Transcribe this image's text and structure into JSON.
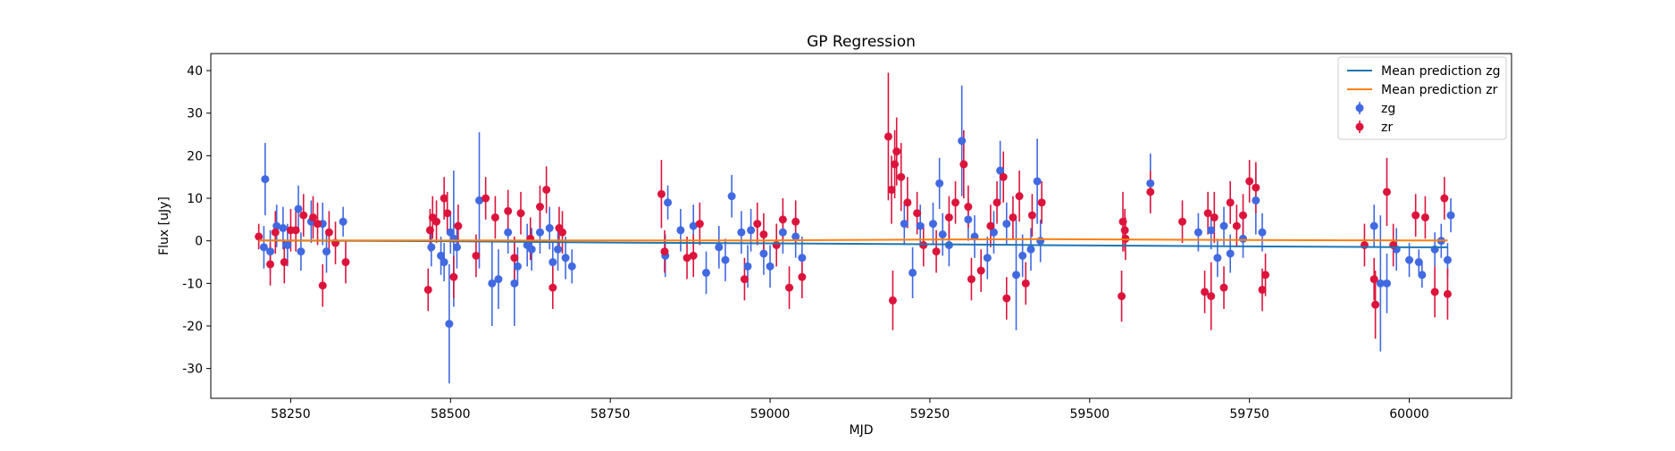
{
  "chart_data": {
    "type": "scatter",
    "title": "GP Regression",
    "xlabel": "MJD",
    "ylabel": "Flux [uJy]",
    "xlim": [
      58125,
      60160
    ],
    "ylim": [
      -37,
      44
    ],
    "xticks": [
      58250,
      58500,
      58750,
      59000,
      59250,
      59500,
      59750,
      60000
    ],
    "yticks": [
      -30,
      -20,
      -10,
      0,
      10,
      20,
      30,
      40
    ],
    "grid": false,
    "legend_position": "top-right",
    "colors": {
      "zg_points": "#4169e1",
      "zr_points": "#dc143c",
      "zg_mean": "#1f77b4",
      "zr_mean": "#ff7f0e"
    },
    "lines": [
      {
        "name": "Mean prediction zg",
        "color": "#1f77b4",
        "x": [
          58200,
          58500,
          58750,
          59000,
          59250,
          59420,
          59750,
          60000,
          60060
        ],
        "y": [
          0.1,
          -0.1,
          -0.4,
          -0.6,
          -0.8,
          -1.0,
          -1.3,
          -1.5,
          -1.5
        ]
      },
      {
        "name": "Mean prediction zr",
        "color": "#ff7f0e",
        "x": [
          58200,
          58500,
          58750,
          59000,
          59250,
          59420,
          59750,
          60000,
          60060
        ],
        "y": [
          0.1,
          0.1,
          0.1,
          0.1,
          0.3,
          0.4,
          0.2,
          0.1,
          0.1
        ]
      }
    ],
    "series": [
      {
        "name": "zg",
        "color": "#4169e1",
        "points": [
          [
            58208,
            -1.5,
            5
          ],
          [
            58210,
            14.5,
            8.5
          ],
          [
            58218,
            -2.5,
            5
          ],
          [
            58228,
            3.5,
            5
          ],
          [
            58238,
            3,
            5
          ],
          [
            58245,
            -1,
            5
          ],
          [
            58262,
            7.5,
            5.5
          ],
          [
            58266,
            -2.5,
            4.5
          ],
          [
            58282,
            4.5,
            5
          ],
          [
            58300,
            4,
            5
          ],
          [
            58306,
            -2.5,
            5
          ],
          [
            58332,
            4.5,
            3.5
          ],
          [
            58470,
            -1.5,
            4.5
          ],
          [
            58485,
            -3.5,
            4.5
          ],
          [
            58490,
            -5,
            4.5
          ],
          [
            58498,
            -19.5,
            14
          ],
          [
            58500,
            2,
            5
          ],
          [
            58505,
            0.5,
            16
          ],
          [
            58510,
            -1.5,
            5
          ],
          [
            58545,
            9.5,
            16
          ],
          [
            58565,
            -10,
            10
          ],
          [
            58575,
            -9,
            7
          ],
          [
            58590,
            2,
            5
          ],
          [
            58600,
            -10,
            10
          ],
          [
            58605,
            -6,
            4.5
          ],
          [
            58620,
            -1,
            5
          ],
          [
            58627,
            -2,
            5
          ],
          [
            58640,
            2,
            5
          ],
          [
            58655,
            3,
            5
          ],
          [
            58660,
            -5,
            5
          ],
          [
            58668,
            -2,
            5
          ],
          [
            58680,
            -4,
            5
          ],
          [
            58690,
            -6,
            4
          ],
          [
            58836,
            -3.5,
            5
          ],
          [
            58840,
            9,
            4
          ],
          [
            58860,
            2.5,
            5
          ],
          [
            58880,
            3.5,
            5
          ],
          [
            58900,
            -7.5,
            5
          ],
          [
            58920,
            -1.5,
            5
          ],
          [
            58930,
            -4.5,
            5
          ],
          [
            58940,
            10.5,
            5
          ],
          [
            58955,
            2,
            5
          ],
          [
            58965,
            -6,
            5
          ],
          [
            58970,
            2.5,
            5
          ],
          [
            58990,
            -3,
            5
          ],
          [
            59000,
            -6,
            5
          ],
          [
            59020,
            2,
            5
          ],
          [
            59040,
            1,
            5
          ],
          [
            59050,
            -4,
            5
          ],
          [
            59210,
            4,
            5
          ],
          [
            59223,
            -7.5,
            6
          ],
          [
            59235,
            3.5,
            5
          ],
          [
            59255,
            4,
            5
          ],
          [
            59265,
            13.5,
            6
          ],
          [
            59270,
            1.5,
            5
          ],
          [
            59280,
            -1,
            5
          ],
          [
            59300,
            23.5,
            13
          ],
          [
            59310,
            5,
            5
          ],
          [
            59320,
            1,
            5
          ],
          [
            59340,
            -4,
            5
          ],
          [
            59350,
            2,
            5
          ],
          [
            59360,
            16.5,
            7
          ],
          [
            59370,
            4,
            5
          ],
          [
            59385,
            -8,
            13
          ],
          [
            59395,
            -3.5,
            5
          ],
          [
            59408,
            -2,
            5
          ],
          [
            59418,
            14,
            10
          ],
          [
            59423,
            0,
            5
          ],
          [
            59595,
            13.5,
            7
          ],
          [
            59670,
            2,
            4.5
          ],
          [
            59690,
            2.5,
            4.5
          ],
          [
            59700,
            -4,
            4.5
          ],
          [
            59710,
            3.5,
            4.5
          ],
          [
            59720,
            -3,
            4.5
          ],
          [
            59740,
            0.5,
            4.5
          ],
          [
            59760,
            9.5,
            8
          ],
          [
            59770,
            2,
            4.5
          ],
          [
            59945,
            3.5,
            5
          ],
          [
            59955,
            -10,
            16
          ],
          [
            59965,
            -10,
            7
          ],
          [
            59980,
            -2,
            5
          ],
          [
            60000,
            -4.5,
            4
          ],
          [
            60015,
            -5,
            3
          ],
          [
            60020,
            -8,
            3
          ],
          [
            60040,
            -2,
            4
          ],
          [
            60050,
            0,
            4
          ],
          [
            60060,
            -4.5,
            4
          ],
          [
            60065,
            6,
            4
          ]
        ]
      },
      {
        "name": "zr",
        "color": "#dc143c",
        "points": [
          [
            58200,
            1,
            3
          ],
          [
            58218,
            -5.5,
            5
          ],
          [
            58226,
            2,
            5
          ],
          [
            58240,
            -5,
            5
          ],
          [
            58250,
            2.5,
            5
          ],
          [
            58258,
            2.5,
            5
          ],
          [
            58270,
            6,
            5
          ],
          [
            58285,
            5.5,
            5
          ],
          [
            58292,
            4,
            5
          ],
          [
            58300,
            -10.5,
            5
          ],
          [
            58310,
            2,
            5
          ],
          [
            58320,
            -0.5,
            5
          ],
          [
            58336,
            -5,
            5
          ],
          [
            58465,
            -11.5,
            5
          ],
          [
            58468,
            2.5,
            5
          ],
          [
            58472,
            5.5,
            5
          ],
          [
            58478,
            4.5,
            5
          ],
          [
            58490,
            10,
            5
          ],
          [
            58495,
            6.5,
            5
          ],
          [
            58505,
            -8.5,
            5
          ],
          [
            58512,
            3.5,
            5
          ],
          [
            58540,
            -3.5,
            5
          ],
          [
            58555,
            10,
            5
          ],
          [
            58570,
            5.5,
            5
          ],
          [
            58590,
            7,
            5
          ],
          [
            58600,
            -4,
            5
          ],
          [
            58610,
            6.5,
            5
          ],
          [
            58625,
            0.5,
            5
          ],
          [
            58640,
            8,
            5
          ],
          [
            58650,
            12,
            5.5
          ],
          [
            58660,
            -11,
            5
          ],
          [
            58670,
            3,
            5
          ],
          [
            58675,
            2,
            5
          ],
          [
            58830,
            11,
            8
          ],
          [
            58835,
            -2.5,
            5
          ],
          [
            58870,
            -4,
            5
          ],
          [
            58880,
            -3.5,
            5
          ],
          [
            58890,
            4,
            5
          ],
          [
            58960,
            -9,
            5
          ],
          [
            58980,
            4,
            5
          ],
          [
            58990,
            1.5,
            5
          ],
          [
            59010,
            -1,
            5
          ],
          [
            59020,
            5,
            5
          ],
          [
            59030,
            -11,
            5
          ],
          [
            59040,
            4.5,
            5
          ],
          [
            59050,
            -8.5,
            5
          ],
          [
            59185,
            24.5,
            15
          ],
          [
            59190,
            12,
            8
          ],
          [
            59192,
            -14,
            7
          ],
          [
            59195,
            18,
            8
          ],
          [
            59198,
            21,
            8
          ],
          [
            59205,
            15,
            8
          ],
          [
            59215,
            9,
            6
          ],
          [
            59230,
            6.5,
            5
          ],
          [
            59240,
            -1,
            5
          ],
          [
            59260,
            -2.5,
            5
          ],
          [
            59280,
            5.5,
            5
          ],
          [
            59290,
            9,
            5
          ],
          [
            59303,
            18,
            8
          ],
          [
            59310,
            8,
            5
          ],
          [
            59315,
            -9,
            5
          ],
          [
            59330,
            -7,
            5
          ],
          [
            59345,
            3.5,
            5
          ],
          [
            59355,
            9,
            5
          ],
          [
            59365,
            15,
            6
          ],
          [
            59370,
            -13.5,
            5
          ],
          [
            59380,
            5.5,
            5
          ],
          [
            59390,
            10.5,
            6
          ],
          [
            59400,
            -10,
            5
          ],
          [
            59410,
            6,
            5
          ],
          [
            59425,
            9,
            5
          ],
          [
            59550,
            -13,
            6
          ],
          [
            59552,
            4.5,
            7
          ],
          [
            59555,
            2.5,
            5
          ],
          [
            59556,
            0.5,
            5
          ],
          [
            59595,
            11.5,
            5
          ],
          [
            59645,
            4.5,
            5
          ],
          [
            59680,
            -12,
            5
          ],
          [
            59685,
            6.5,
            5
          ],
          [
            59690,
            -13,
            8
          ],
          [
            59695,
            5.5,
            6
          ],
          [
            59710,
            -11,
            5
          ],
          [
            59720,
            9,
            5
          ],
          [
            59730,
            3.5,
            5
          ],
          [
            59740,
            6,
            5
          ],
          [
            59750,
            14,
            5
          ],
          [
            59760,
            12.5,
            6
          ],
          [
            59770,
            -11.5,
            5
          ],
          [
            59775,
            -8,
            5
          ],
          [
            59930,
            -1,
            5
          ],
          [
            59945,
            -9,
            5
          ],
          [
            59947,
            -15,
            8
          ],
          [
            59965,
            11.5,
            8
          ],
          [
            59975,
            -1,
            5
          ],
          [
            60010,
            6,
            5
          ],
          [
            60025,
            5.5,
            5
          ],
          [
            60040,
            -12,
            6
          ],
          [
            60055,
            10,
            5
          ],
          [
            60060,
            -12.5,
            6
          ]
        ]
      }
    ]
  }
}
